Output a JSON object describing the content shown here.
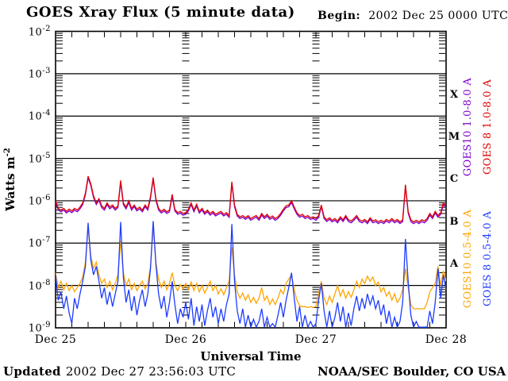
{
  "header": {
    "title": "GOES Xray Flux (5 minute data)",
    "begin_label": "Begin:",
    "begin_value": "2002 Dec 25 0000 UTC"
  },
  "footer": {
    "updated_label": "Updated",
    "updated_value": "2002 Dec 27 23:56:03 UTC",
    "credit": "NOAA/SEC Boulder, CO USA"
  },
  "axes": {
    "x_label": "Universal Time",
    "x_tick_labels": [
      "Dec 25",
      "Dec 26",
      "Dec 27",
      "Dec 28"
    ],
    "y_label_base": "Watts m",
    "y_label_exponent": "-2",
    "y_tick_exponents": [
      -2,
      -3,
      -4,
      -5,
      -6,
      -7,
      -8,
      -9
    ],
    "flare_class_labels": [
      "X",
      "M",
      "C",
      "B",
      "A"
    ]
  },
  "legend": [
    {
      "label": "GOES10 1.0-8.0 A",
      "color": "#7d00cc",
      "column": 1,
      "band": "long"
    },
    {
      "label": "GOES 8 1.0-8.0 A",
      "color": "#e00000",
      "column": 2,
      "band": "long"
    },
    {
      "label": "GOES10 0.5-4.0 A",
      "color": "#ffa500",
      "column": 1,
      "band": "short"
    },
    {
      "label": "GOES 8 0.5-4.0 A",
      "color": "#1e3cff",
      "column": 2,
      "band": "short"
    }
  ],
  "chart_data": {
    "type": "line",
    "title": "GOES Xray Flux (5 minute data)",
    "xlabel": "Universal Time",
    "ylabel": "Watts m^-2",
    "x_start": "2002 Dec 25 0000 UTC",
    "x_end": "2002 Dec 28 0000 UTC",
    "x_span_days": 3,
    "sample_interval_hours": 0.5,
    "y_scale": "log10",
    "ylim_exponents": [
      -9,
      -2
    ],
    "grid": "horizontal decade lines; log minor-tick columns at day boundaries",
    "series": [
      {
        "name": "GOES10 0.5-4.0 A",
        "satellite": "GOES10",
        "wavelength_angstrom": "0.5-4.0",
        "color": "#ffa500",
        "log10_watts_per_m2": [
          -7.7,
          -8.05,
          -7.9,
          -8.1,
          -7.95,
          -8.12,
          -8.0,
          -8.15,
          -8.05,
          -7.95,
          -7.8,
          -7.45,
          -6.6,
          -7.3,
          -7.6,
          -7.45,
          -7.75,
          -7.95,
          -7.85,
          -8.05,
          -7.9,
          -8.1,
          -7.95,
          -7.75,
          -6.95,
          -7.7,
          -8.0,
          -7.85,
          -8.1,
          -7.95,
          -8.12,
          -8.0,
          -7.9,
          -8.08,
          -7.95,
          -7.55,
          -6.62,
          -7.45,
          -7.85,
          -8.05,
          -7.9,
          -8.1,
          -7.95,
          -7.7,
          -8.0,
          -8.12,
          -7.98,
          -8.08,
          -7.95,
          -8.1,
          -7.92,
          -8.12,
          -7.95,
          -8.15,
          -8.0,
          -8.18,
          -8.05,
          -7.9,
          -8.12,
          -8.0,
          -8.2,
          -8.08,
          -8.22,
          -8.05,
          -7.9,
          -7.1,
          -7.75,
          -8.15,
          -8.3,
          -8.18,
          -8.35,
          -8.22,
          -8.4,
          -8.28,
          -8.42,
          -8.3,
          -8.05,
          -8.35,
          -8.25,
          -8.45,
          -8.32,
          -8.45,
          -8.3,
          -8.1,
          -8.2,
          -7.95,
          -7.85,
          -7.75,
          -8.1,
          -8.35,
          -8.48,
          -8.5,
          -8.5,
          -8.52,
          -8.5,
          -8.52,
          -8.5,
          -8.2,
          -7.9,
          -8.3,
          -8.45,
          -8.25,
          -8.4,
          -8.2,
          -8.0,
          -8.25,
          -8.1,
          -8.3,
          -8.15,
          -8.28,
          -8.1,
          -7.9,
          -8.05,
          -7.85,
          -7.95,
          -7.78,
          -7.9,
          -7.8,
          -8.0,
          -7.92,
          -8.15,
          -8.05,
          -8.25,
          -8.15,
          -8.35,
          -8.2,
          -8.4,
          -8.3,
          -8.1,
          -7.6,
          -8.05,
          -8.45,
          -8.55,
          -8.55,
          -8.55,
          -8.55,
          -8.55,
          -8.4,
          -8.15,
          -8.05,
          -7.95,
          -7.55,
          -8.0,
          -7.65,
          -7.9
        ]
      },
      {
        "name": "GOES 8 0.5-4.0 A",
        "satellite": "GOES 8",
        "wavelength_angstrom": "0.5-4.0",
        "color": "#1e3cff",
        "log10_watts_per_m2": [
          -7.75,
          -8.35,
          -8.15,
          -8.55,
          -8.25,
          -8.65,
          -8.9,
          -8.3,
          -8.55,
          -8.2,
          -7.9,
          -7.55,
          -6.52,
          -7.4,
          -7.75,
          -7.55,
          -7.9,
          -8.3,
          -8.05,
          -8.45,
          -8.15,
          -8.5,
          -8.2,
          -7.9,
          -6.5,
          -7.8,
          -8.4,
          -8.1,
          -8.6,
          -8.25,
          -8.7,
          -8.35,
          -8.1,
          -8.5,
          -8.2,
          -7.6,
          -6.48,
          -7.5,
          -8.2,
          -8.55,
          -8.25,
          -8.75,
          -8.4,
          -7.9,
          -8.45,
          -8.9,
          -8.55,
          -8.75,
          -8.4,
          -8.8,
          -8.3,
          -8.95,
          -8.5,
          -8.85,
          -8.45,
          -8.95,
          -8.6,
          -8.3,
          -8.75,
          -8.5,
          -8.9,
          -8.55,
          -8.85,
          -8.45,
          -8.2,
          -6.55,
          -7.9,
          -8.6,
          -8.9,
          -8.55,
          -9.0,
          -8.7,
          -9.1,
          -8.8,
          -9.15,
          -8.85,
          -8.55,
          -9.1,
          -8.75,
          -9.2,
          -8.9,
          -9.15,
          -8.7,
          -8.4,
          -8.75,
          -8.35,
          -8.05,
          -7.7,
          -8.3,
          -8.85,
          -8.5,
          -9.1,
          -8.7,
          -9.2,
          -8.85,
          -9.25,
          -8.9,
          -8.35,
          -7.95,
          -8.6,
          -9.05,
          -8.6,
          -9.15,
          -8.75,
          -8.4,
          -8.85,
          -8.5,
          -9.05,
          -8.65,
          -8.95,
          -8.55,
          -8.25,
          -8.6,
          -8.3,
          -8.55,
          -8.2,
          -8.45,
          -8.25,
          -8.55,
          -8.35,
          -8.7,
          -8.45,
          -8.9,
          -8.6,
          -9.1,
          -8.75,
          -9.2,
          -8.85,
          -8.4,
          -6.9,
          -7.9,
          -8.7,
          -9.15,
          -8.85,
          -9.25,
          -9.0,
          -9.3,
          -9.05,
          -8.6,
          -8.9,
          -8.4,
          -7.6,
          -8.3,
          -7.75,
          -8.1
        ]
      },
      {
        "name": "GOES10 1.0-8.0 A",
        "satellite": "GOES10",
        "wavelength_angstrom": "1.0-8.0",
        "color": "#7d00cc",
        "log10_watts_per_m2": [
          -6.04,
          -6.22,
          -6.26,
          -6.22,
          -6.29,
          -6.24,
          -6.28,
          -6.22,
          -6.26,
          -6.19,
          -6.09,
          -5.86,
          -5.46,
          -5.64,
          -5.92,
          -6.09,
          -5.99,
          -6.16,
          -6.22,
          -6.09,
          -6.19,
          -6.14,
          -6.22,
          -6.16,
          -5.56,
          -6.09,
          -6.19,
          -6.04,
          -6.22,
          -6.14,
          -6.24,
          -6.19,
          -6.26,
          -6.14,
          -6.22,
          -5.94,
          -5.49,
          -5.99,
          -6.22,
          -6.29,
          -6.24,
          -6.3,
          -6.26,
          -5.89,
          -6.24,
          -6.32,
          -6.29,
          -6.34,
          -6.32,
          -6.24,
          -6.09,
          -6.26,
          -6.12,
          -6.29,
          -6.22,
          -6.32,
          -6.26,
          -6.34,
          -6.29,
          -6.36,
          -6.32,
          -6.29,
          -6.36,
          -6.32,
          -6.39,
          -5.59,
          -6.14,
          -6.36,
          -6.42,
          -6.39,
          -6.44,
          -6.39,
          -6.46,
          -6.42,
          -6.39,
          -6.46,
          -6.34,
          -6.42,
          -6.36,
          -6.44,
          -6.4,
          -6.46,
          -6.42,
          -6.34,
          -6.24,
          -6.16,
          -6.14,
          -6.04,
          -6.19,
          -6.32,
          -6.39,
          -6.36,
          -6.42,
          -6.39,
          -6.44,
          -6.42,
          -6.46,
          -6.39,
          -6.14,
          -6.42,
          -6.49,
          -6.44,
          -6.5,
          -6.46,
          -6.52,
          -6.42,
          -6.49,
          -6.39,
          -6.49,
          -6.52,
          -6.46,
          -6.39,
          -6.49,
          -6.52,
          -6.48,
          -6.54,
          -6.44,
          -6.52,
          -6.49,
          -6.54,
          -6.5,
          -6.54,
          -6.48,
          -6.52,
          -6.46,
          -6.52,
          -6.48,
          -6.54,
          -6.49,
          -5.66,
          -6.29,
          -6.49,
          -6.54,
          -6.5,
          -6.54,
          -6.49,
          -6.52,
          -6.46,
          -6.34,
          -6.42,
          -6.29,
          -6.39,
          -6.32,
          -6.09,
          -6.16
        ]
      },
      {
        "name": "GOES 8 1.0-8.0 A",
        "satellite": "GOES 8",
        "wavelength_angstrom": "1.0-8.0",
        "color": "#e00000",
        "log10_watts_per_m2": [
          -6.0,
          -6.18,
          -6.22,
          -6.18,
          -6.25,
          -6.2,
          -6.24,
          -6.18,
          -6.22,
          -6.15,
          -6.05,
          -5.82,
          -5.42,
          -5.6,
          -5.88,
          -6.05,
          -5.95,
          -6.12,
          -6.18,
          -6.05,
          -6.15,
          -6.1,
          -6.18,
          -6.12,
          -5.52,
          -6.05,
          -6.15,
          -6.0,
          -6.18,
          -6.1,
          -6.2,
          -6.15,
          -6.22,
          -6.1,
          -6.18,
          -5.9,
          -5.45,
          -5.95,
          -6.18,
          -6.25,
          -6.2,
          -6.26,
          -6.22,
          -5.85,
          -6.2,
          -6.28,
          -6.25,
          -6.3,
          -6.28,
          -6.2,
          -6.05,
          -6.22,
          -6.08,
          -6.25,
          -6.18,
          -6.28,
          -6.22,
          -6.3,
          -6.25,
          -6.32,
          -6.28,
          -6.25,
          -6.32,
          -6.28,
          -6.35,
          -5.55,
          -6.1,
          -6.32,
          -6.38,
          -6.35,
          -6.4,
          -6.35,
          -6.42,
          -6.38,
          -6.35,
          -6.42,
          -6.3,
          -6.38,
          -6.32,
          -6.4,
          -6.36,
          -6.42,
          -6.38,
          -6.3,
          -6.2,
          -6.12,
          -6.1,
          -6.0,
          -6.15,
          -6.28,
          -6.35,
          -6.32,
          -6.38,
          -6.35,
          -6.4,
          -6.38,
          -6.42,
          -6.35,
          -6.1,
          -6.38,
          -6.45,
          -6.4,
          -6.46,
          -6.42,
          -6.48,
          -6.38,
          -6.45,
          -6.35,
          -6.45,
          -6.48,
          -6.42,
          -6.35,
          -6.45,
          -6.48,
          -6.44,
          -6.5,
          -6.4,
          -6.48,
          -6.45,
          -6.5,
          -6.46,
          -6.5,
          -6.44,
          -6.48,
          -6.42,
          -6.48,
          -6.44,
          -6.5,
          -6.45,
          -5.62,
          -6.25,
          -6.45,
          -6.5,
          -6.46,
          -6.5,
          -6.45,
          -6.48,
          -6.42,
          -6.3,
          -6.38,
          -6.25,
          -6.35,
          -6.28,
          -6.05,
          -6.12
        ]
      }
    ]
  }
}
